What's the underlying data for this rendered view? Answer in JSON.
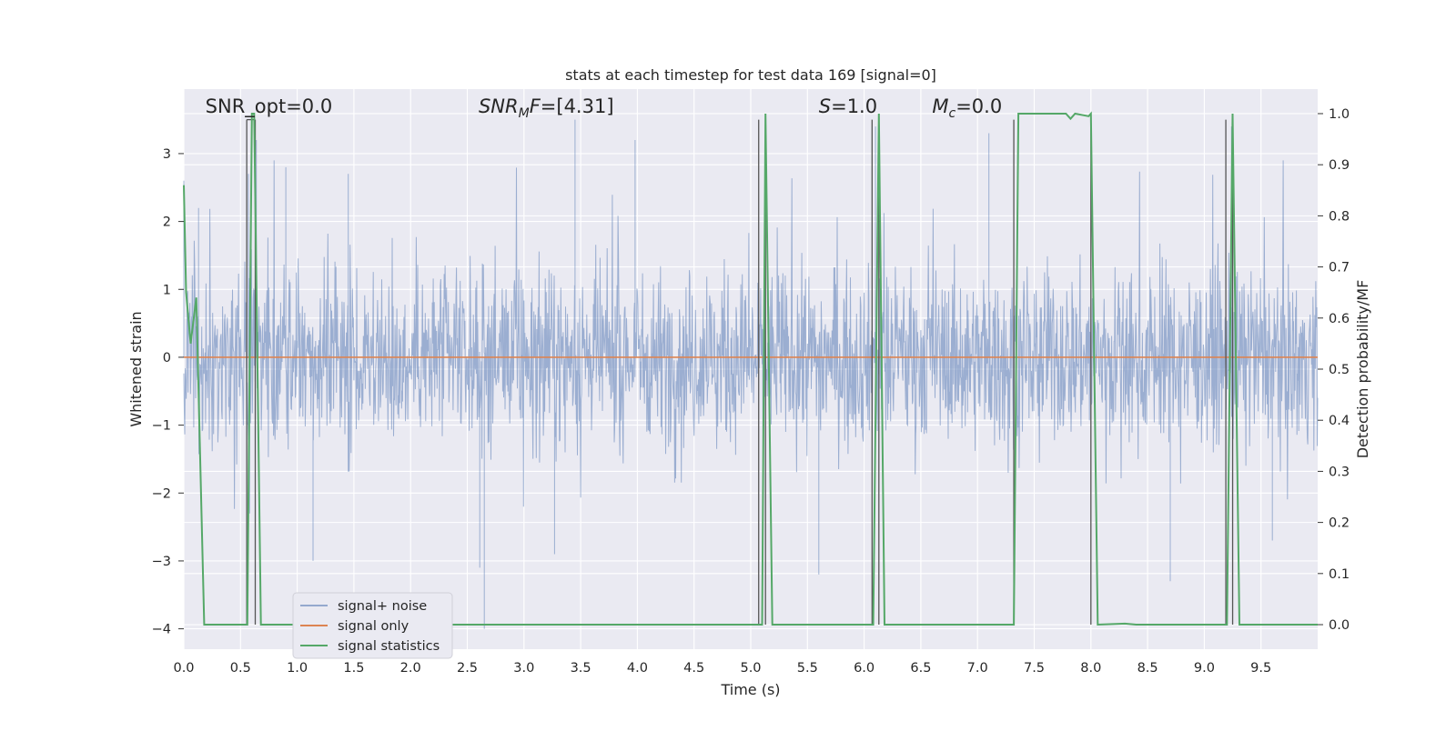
{
  "chart_data": {
    "type": "line",
    "title": "stats at each timestep for test data 169 [signal=0]",
    "xlabel": "Time (s)",
    "ylabel": "Whitened strain",
    "y2label": "Detection probability/MF",
    "xlim": [
      0.0,
      10.0
    ],
    "ylim": [
      -4.3,
      3.95
    ],
    "y2lim": [
      -0.048,
      1.048
    ],
    "grid": true,
    "legend_placement": "lower-left",
    "x_ticks": [
      "0.0",
      "0.5",
      "1.0",
      "1.5",
      "2.0",
      "2.5",
      "3.0",
      "3.5",
      "4.0",
      "4.5",
      "5.0",
      "5.5",
      "6.0",
      "6.5",
      "7.0",
      "7.5",
      "8.0",
      "8.5",
      "9.0",
      "9.5"
    ],
    "x_tick_values": [
      0.0,
      0.5,
      1.0,
      1.5,
      2.0,
      2.5,
      3.0,
      3.5,
      4.0,
      4.5,
      5.0,
      5.5,
      6.0,
      6.5,
      7.0,
      7.5,
      8.0,
      8.5,
      9.0,
      9.5
    ],
    "y_ticks": [
      "3",
      "2",
      "1",
      "0",
      "−1",
      "−2",
      "−3",
      "−4"
    ],
    "y_tick_values": [
      3,
      2,
      1,
      0,
      -1,
      -2,
      -3,
      -4
    ],
    "y2_ticks": [
      "1.0",
      "0.9",
      "0.8",
      "0.7",
      "0.6",
      "0.5",
      "0.4",
      "0.3",
      "0.2",
      "0.1",
      "0.0"
    ],
    "y2_tick_values": [
      1.0,
      0.9,
      0.8,
      0.7,
      0.6,
      0.5,
      0.4,
      0.3,
      0.2,
      0.1,
      0.0
    ],
    "annotations": [
      {
        "text": "SNR_opt=0.0",
        "x": 0.19
      },
      {
        "text": "SNR_MF=[4.31]",
        "x": 2.6
      },
      {
        "text": "S=1.0",
        "x": 5.6
      },
      {
        "text": "M_c=0.0",
        "x": 6.6
      }
    ],
    "series": [
      {
        "name": "signal+ noise",
        "color": "#4c72b0",
        "opacity": 0.5,
        "axis": "left",
        "description": "whitened noise, approx. ±1.2 dense band with peaks to ±3.5",
        "peaks": [
          {
            "x": 0.0,
            "y": 2.6
          },
          {
            "x": 0.13,
            "y": 2.2
          },
          {
            "x": 0.57,
            "y": 2.7
          },
          {
            "x": 0.58,
            "y": -2.3
          },
          {
            "x": 0.64,
            "y": 3.2
          },
          {
            "x": 0.9,
            "y": 2.8
          },
          {
            "x": 1.14,
            "y": -3.0
          },
          {
            "x": 1.45,
            "y": 2.7
          },
          {
            "x": 2.61,
            "y": -3.1
          },
          {
            "x": 2.65,
            "y": -4.0
          },
          {
            "x": 3.27,
            "y": -2.9
          },
          {
            "x": 3.45,
            "y": 3.5
          },
          {
            "x": 3.98,
            "y": 3.2
          },
          {
            "x": 5.6,
            "y": -3.2
          },
          {
            "x": 6.1,
            "y": 3.4
          },
          {
            "x": 7.1,
            "y": 3.3
          },
          {
            "x": 8.7,
            "y": -3.3
          },
          {
            "x": 9.24,
            "y": 3.4
          },
          {
            "x": 9.6,
            "y": -2.7
          }
        ]
      },
      {
        "name": "signal only",
        "color": "#dd8452",
        "axis": "left",
        "x": [
          0.0,
          10.0
        ],
        "y": [
          0.0,
          0.0
        ]
      },
      {
        "name": "signal statistics",
        "color": "#55a868",
        "axis": "right",
        "x": [
          0.0,
          0.02,
          0.06,
          0.11,
          0.18,
          0.56,
          0.6,
          0.62,
          0.68,
          5.1,
          5.13,
          5.19,
          6.08,
          6.13,
          6.18,
          7.32,
          7.36,
          7.78,
          7.82,
          7.86,
          7.98,
          8.0,
          8.06,
          8.3,
          8.4,
          9.2,
          9.25,
          9.31,
          10.0
        ],
        "y": [
          0.86,
          0.65,
          0.55,
          0.64,
          0.0,
          0.0,
          1.0,
          1.0,
          0.0,
          0.0,
          1.0,
          0.0,
          0.0,
          1.0,
          0.0,
          0.0,
          1.0,
          1.0,
          0.99,
          1.0,
          0.995,
          1.0,
          0.0,
          0.002,
          0.0,
          0.0,
          1.0,
          0.0,
          0.0
        ]
      }
    ],
    "vertical_markers": [
      {
        "x": 0.555,
        "y_top": 3.5
      },
      {
        "x": 0.63,
        "y_top": 3.5
      },
      {
        "x": 5.07,
        "y_top": 3.5
      },
      {
        "x": 5.13,
        "y_top": 3.5
      },
      {
        "x": 6.07,
        "y_top": 3.5
      },
      {
        "x": 6.13,
        "y_top": 3.5
      },
      {
        "x": 7.32,
        "y_top": 3.5
      },
      {
        "x": 8.0,
        "y_top": 3.5
      },
      {
        "x": 9.19,
        "y_top": 3.5
      },
      {
        "x": 9.25,
        "y_top": 3.5
      }
    ],
    "colors": {
      "plot_background": "#eaeaf2",
      "grid": "#ffffff",
      "marker_lines": "#555555"
    }
  }
}
